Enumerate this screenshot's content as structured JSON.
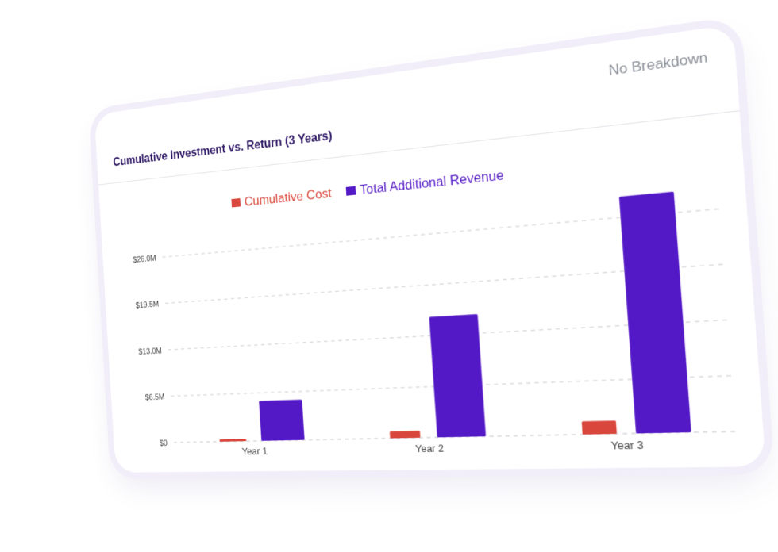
{
  "card": {
    "title": "Cumulative Investment vs. Return (3 Years)",
    "breakdown_label": "No Breakdown"
  },
  "colors": {
    "cost": "#d9463b",
    "revenue": "#5419c6",
    "grid": "#d8d8de",
    "tick_text": "#444444",
    "title": "#2d1663"
  },
  "chart_data": {
    "type": "bar",
    "title": "Cumulative Investment vs. Return (3 Years)",
    "categories": [
      "Year 1",
      "Year 2",
      "Year 3"
    ],
    "series": [
      {
        "name": "Cumulative Cost",
        "values": [
          0.3,
          0.9,
          1.6
        ],
        "color": "#d9463b"
      },
      {
        "name": "Total Additional Revenue",
        "values": [
          5.4,
          15.4,
          28.5
        ],
        "color": "#5419c6"
      }
    ],
    "ylim": [
      0,
      29
    ],
    "yticks": [
      0,
      6.5,
      13.0,
      19.5,
      26.0
    ],
    "ytick_labels": [
      "$0",
      "$6.5M",
      "$13.0M",
      "$19.5M",
      "$26.0M"
    ],
    "xlabel": "",
    "ylabel": "",
    "grid": true,
    "legend_position": "top-center"
  }
}
